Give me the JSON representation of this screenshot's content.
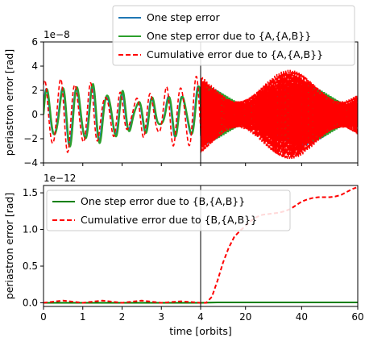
{
  "chart_data": [
    {
      "type": "line",
      "panel": "top",
      "ylabel": "periastron error [rad]",
      "scale_note": "1e−8",
      "ylim": [
        -4,
        6
      ],
      "yticks": [
        "−4",
        "−2",
        "0",
        "2",
        "4",
        "6"
      ],
      "x_linear_range": [
        0,
        4
      ],
      "x_log_range": [
        4,
        60
      ],
      "xticks": [
        "0",
        "1",
        "2",
        "3",
        "4",
        "20",
        "40",
        "60"
      ],
      "grid": false,
      "legend_position": "top-right",
      "series": [
        {
          "name": "One step error",
          "color": "#1f77b4",
          "style": "solid",
          "amplitude_early": 2.2,
          "amplitude_late": 2.6
        },
        {
          "name": "One step error due to {A,{A,B}}",
          "color": "#2ca02c",
          "style": "solid",
          "amplitude_early": 2.3,
          "amplitude_late": 2.4
        },
        {
          "name": "Cumulative error due to {A,{A,B}}",
          "color": "#ff0000",
          "style": "dashed",
          "amplitude_early": 2.8,
          "amplitude_late": 3.7
        }
      ]
    },
    {
      "type": "line",
      "panel": "bottom",
      "ylabel": "periastron error [rad]",
      "xlabel": "time [orbits]",
      "scale_note": "1e−12",
      "ylim": [
        -0.05,
        1.6
      ],
      "yticks": [
        "0.0",
        "0.5",
        "1.0",
        "1.5"
      ],
      "xticks": [
        "0",
        "1",
        "2",
        "3",
        "4",
        "20",
        "40",
        "60"
      ],
      "grid": false,
      "legend_position": "top-left",
      "series": [
        {
          "name": "One step error due to {B,{A,B}}",
          "color": "#008000",
          "style": "solid",
          "x": [
            0,
            2,
            4,
            10,
            20,
            30,
            40,
            50,
            60
          ],
          "y": [
            0.0,
            0.0,
            0.0,
            0.005,
            0.005,
            0.005,
            0.005,
            0.005,
            0.005
          ]
        },
        {
          "name": "Cumulative error due to {B,{A,B}}",
          "color": "#ff0000",
          "style": "dashed",
          "x": [
            0,
            0.5,
            1,
            1.5,
            2,
            2.5,
            3,
            3.5,
            4,
            6,
            8,
            10,
            12,
            14,
            16,
            18,
            20,
            22,
            24,
            26,
            28,
            30,
            32,
            34,
            36,
            38,
            40,
            42,
            44,
            46,
            48,
            50,
            52,
            54,
            56,
            58,
            60
          ],
          "y": [
            0.0,
            0.03,
            0.0,
            0.03,
            0.0,
            0.03,
            0.0,
            0.02,
            0.0,
            0.0,
            0.08,
            0.3,
            0.55,
            0.75,
            0.9,
            0.98,
            1.05,
            1.12,
            1.17,
            1.2,
            1.21,
            1.22,
            1.23,
            1.25,
            1.28,
            1.33,
            1.38,
            1.41,
            1.43,
            1.44,
            1.44,
            1.44,
            1.45,
            1.47,
            1.51,
            1.55,
            1.58
          ]
        }
      ]
    }
  ]
}
